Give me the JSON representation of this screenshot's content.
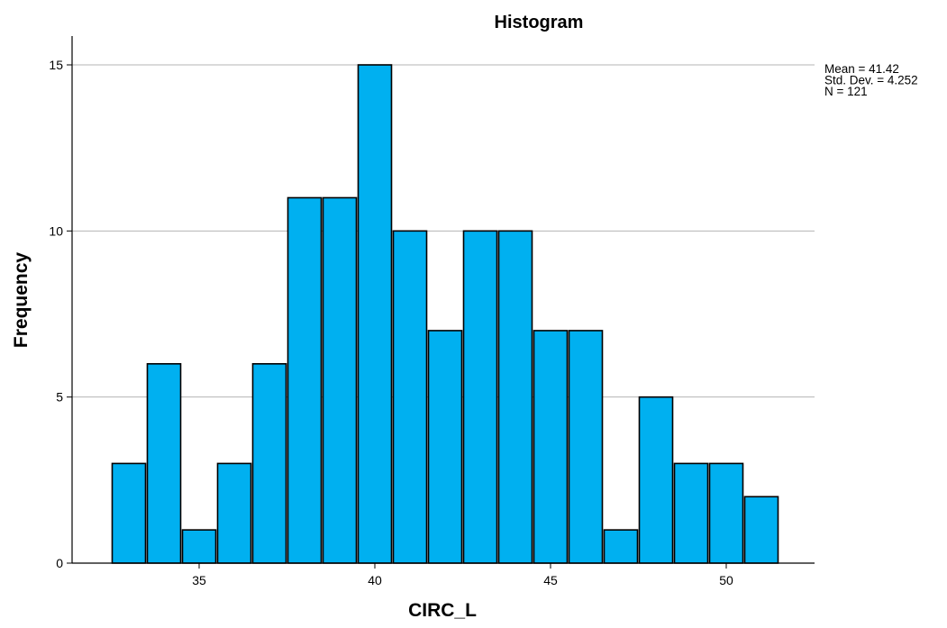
{
  "chart_data": {
    "type": "bar",
    "title": "Histogram",
    "xlabel": "CIRC_L",
    "ylabel": "Frequency",
    "bin_width": 1,
    "bins_start": [
      32.5,
      33.5,
      34.5,
      35.5,
      36.5,
      37.5,
      38.5,
      39.5,
      40.5,
      41.5,
      42.5,
      43.5,
      44.5,
      45.5,
      46.5,
      47.5,
      48.5,
      49.5,
      50.5
    ],
    "values": [
      3,
      6,
      1,
      3,
      6,
      11,
      11,
      15,
      10,
      7,
      10,
      10,
      7,
      7,
      1,
      5,
      3,
      3,
      2
    ],
    "xlim": [
      28.9,
      53.5
    ],
    "ylim": [
      0,
      16
    ],
    "x_ticks": [
      35,
      40,
      45,
      50
    ],
    "y_ticks": [
      0,
      5,
      10,
      15
    ],
    "grid_y": true,
    "bar_color": "#00b0f0",
    "bar_edge_color": "#000000",
    "stats": [
      "Mean = 41.42",
      "Std. Dev. = 4.252",
      "N = 121"
    ],
    "legend_position": "top-right"
  }
}
